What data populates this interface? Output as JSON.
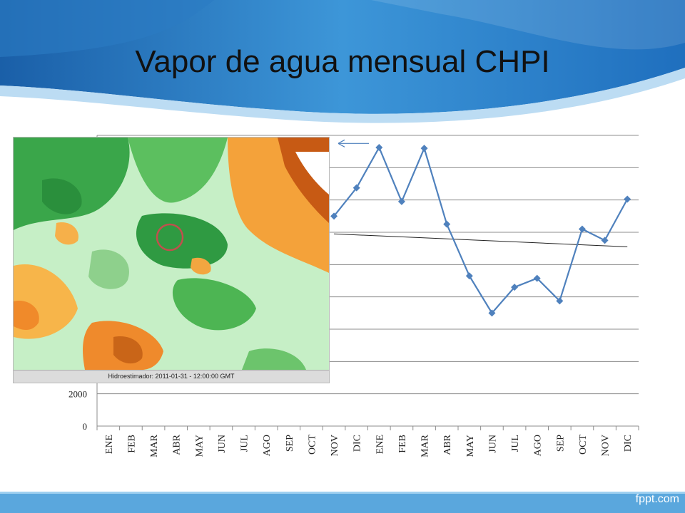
{
  "slide": {
    "title": "Vapor de agua mensual CHPI",
    "brand": "fppt.com"
  },
  "map": {
    "caption": "Hidroestimador: 2011-01-31 - 12:00:00 GMT"
  },
  "colors": {
    "series": "#4f81bd",
    "trend": "#222222",
    "grid": "#8c8c8c",
    "header_blue": "#3a8fd0",
    "marker_circle": "#c0504d"
  },
  "chart_data": {
    "type": "line",
    "categories": [
      "ENE",
      "FEB",
      "MAR",
      "ABR",
      "MAY",
      "JUN",
      "JUL",
      "AGO",
      "SEP",
      "OCT",
      "NOV",
      "DIC",
      "ENE",
      "FEB",
      "MAR",
      "ABR",
      "MAY",
      "JUN",
      "JUL",
      "AGO",
      "SEP",
      "OCT",
      "NOV",
      "DIC"
    ],
    "y_ticks_visible": [
      0,
      2000
    ],
    "ylim": [
      0,
      18000
    ],
    "grid": true,
    "series": [
      {
        "values": [
          null,
          null,
          null,
          null,
          null,
          null,
          null,
          null,
          null,
          null,
          13000,
          14750,
          17250,
          13900,
          17200,
          12500,
          9300,
          7000,
          8600,
          9150,
          7750,
          12200,
          11500,
          14050
        ]
      }
    ],
    "trend_line": {
      "start": [
        10,
        11900
      ],
      "end": [
        23,
        11100
      ]
    },
    "annotations": [
      "arrow-left near 17500"
    ]
  }
}
